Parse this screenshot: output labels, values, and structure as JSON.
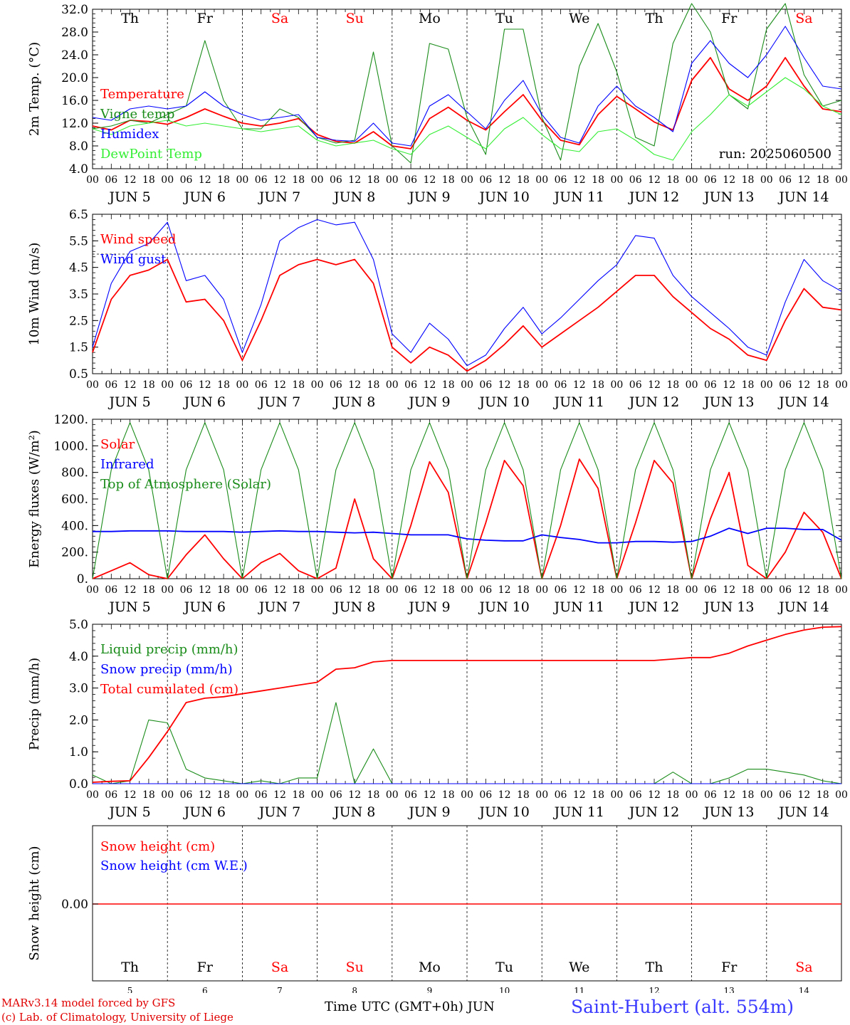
{
  "meta": {
    "credit_line1": "MARv3.14 model forced by GFS",
    "credit_line2": "(c) Lab. of Climatology, University of Liege",
    "x_title": "Time UTC (GMT+0h) JUN",
    "station": "Saint-Hubert (alt. 554m)"
  },
  "colors": {
    "red": "#ff0000",
    "green": "#1a8c1a",
    "blue": "#0000ff",
    "lightgreen": "#33ee33",
    "black": "#000000"
  },
  "days": {
    "weekday_labels": [
      "Th",
      "Fr",
      "Sa",
      "Su",
      "Mo",
      "Tu",
      "We",
      "Th",
      "Fr",
      "Sa"
    ],
    "weekend_flags": [
      false,
      false,
      true,
      true,
      false,
      false,
      false,
      false,
      false,
      true
    ],
    "date_labels": [
      "JUN  5",
      "JUN  6",
      "JUN  7",
      "JUN  8",
      "JUN  9",
      "JUN 10",
      "JUN 11",
      "JUN 12",
      "JUN 13",
      "JUN 14"
    ],
    "day_numbers": [
      "5",
      "6",
      "7",
      "8",
      "9",
      "10",
      "11",
      "12",
      "13",
      "14"
    ],
    "hour_ticks": [
      "00",
      "06",
      "12",
      "18"
    ],
    "last_tick": "00"
  },
  "chart_data": [
    {
      "type": "line",
      "panel": "temperature",
      "ylabel": "2m Temp. (°C)",
      "ylim": [
        4.0,
        32.0
      ],
      "yticks": [
        "4.0",
        "8.0",
        "12.0",
        "16.0",
        "20.0",
        "24.0",
        "28.0",
        "32.0"
      ],
      "annotation": "run: 2025060500",
      "x_hours": [
        0,
        6,
        12,
        18,
        24,
        30,
        36,
        42,
        48,
        54,
        60,
        66,
        72,
        78,
        84,
        90,
        96,
        102,
        108,
        114,
        120,
        126,
        132,
        138,
        144,
        150,
        156,
        162,
        168,
        174,
        180,
        186,
        192,
        198,
        204,
        210,
        216,
        222,
        228,
        234,
        240
      ],
      "series": [
        {
          "name": "Temperature",
          "color": "red",
          "values": [
            11.5,
            10.8,
            12.5,
            12.3,
            11.8,
            13.0,
            14.5,
            13.2,
            12.0,
            11.5,
            12.0,
            12.8,
            10.0,
            8.8,
            8.5,
            10.5,
            8.0,
            7.5,
            12.8,
            14.8,
            12.5,
            10.8,
            14.0,
            17.0,
            12.5,
            9.0,
            8.2,
            13.5,
            16.7,
            14.5,
            12.2,
            10.8,
            19.5,
            23.5,
            18.0,
            16.0,
            18.5,
            23.5,
            18.5,
            14.5,
            14.0
          ]
        },
        {
          "name": "Vigne temp",
          "color": "green",
          "values": [
            11.0,
            11.5,
            12.5,
            12.0,
            13.5,
            15.0,
            26.5,
            16.0,
            11.0,
            11.0,
            14.5,
            13.0,
            9.5,
            8.5,
            9.0,
            24.5,
            8.0,
            5.0,
            26.0,
            25.0,
            13.0,
            6.5,
            28.5,
            28.5,
            13.0,
            5.5,
            22.0,
            29.5,
            21.0,
            9.5,
            8.0,
            26.0,
            33.0,
            28.0,
            17.0,
            14.5,
            28.5,
            33.0,
            20.5,
            15.0,
            16.0
          ]
        },
        {
          "name": "Humidex",
          "color": "blue",
          "values": [
            13.0,
            12.5,
            14.5,
            15.0,
            14.5,
            15.0,
            17.5,
            15.0,
            13.5,
            12.5,
            13.0,
            13.5,
            9.5,
            9.0,
            8.8,
            12.0,
            8.5,
            8.0,
            15.0,
            17.0,
            14.0,
            11.0,
            16.0,
            19.5,
            13.5,
            9.5,
            8.5,
            15.0,
            18.5,
            15.0,
            13.0,
            10.5,
            22.5,
            26.5,
            22.5,
            20.0,
            24.0,
            29.0,
            23.5,
            18.5,
            18.0
          ]
        },
        {
          "name": "DewPoint Temp",
          "color": "lightgreen",
          "values": [
            11.0,
            10.0,
            11.5,
            12.0,
            12.5,
            11.5,
            12.0,
            11.5,
            11.0,
            10.5,
            11.0,
            11.5,
            9.0,
            8.0,
            8.5,
            9.0,
            7.5,
            6.5,
            10.0,
            11.5,
            9.5,
            7.5,
            11.0,
            13.0,
            10.0,
            7.5,
            7.0,
            10.5,
            11.0,
            9.0,
            6.5,
            5.5,
            10.5,
            13.5,
            17.0,
            15.0,
            17.5,
            20.0,
            18.0,
            15.0,
            13.5
          ]
        }
      ]
    },
    {
      "type": "line",
      "panel": "wind",
      "ylabel": "10m Wind (m/s)",
      "ylim": [
        0.5,
        6.5
      ],
      "yticks": [
        "0.5",
        "1.5",
        "2.5",
        "3.5",
        "4.5",
        "5.5",
        "6.5"
      ],
      "reference_line": 5.0,
      "x_hours": [
        0,
        6,
        12,
        18,
        24,
        30,
        36,
        42,
        48,
        54,
        60,
        66,
        72,
        78,
        84,
        90,
        96,
        102,
        108,
        114,
        120,
        126,
        132,
        138,
        144,
        150,
        156,
        162,
        168,
        174,
        180,
        186,
        192,
        198,
        204,
        210,
        216,
        222,
        228,
        234,
        240
      ],
      "series": [
        {
          "name": "Wind speed",
          "color": "red",
          "values": [
            1.3,
            3.3,
            4.2,
            4.4,
            4.8,
            3.2,
            3.3,
            2.5,
            1.0,
            2.5,
            4.2,
            4.6,
            4.8,
            4.6,
            4.8,
            3.9,
            1.5,
            0.9,
            1.5,
            1.2,
            0.6,
            1.0,
            1.6,
            2.3,
            1.5,
            2.0,
            2.5,
            3.0,
            3.6,
            4.2,
            4.2,
            3.4,
            2.8,
            2.2,
            1.8,
            1.2,
            1.0,
            2.5,
            3.7,
            3.0,
            2.9
          ]
        },
        {
          "name": "Wind gust",
          "color": "blue",
          "values": [
            1.5,
            3.9,
            5.1,
            5.4,
            6.2,
            4.0,
            4.2,
            3.3,
            1.3,
            3.1,
            5.5,
            6.0,
            6.3,
            6.1,
            6.2,
            4.8,
            2.0,
            1.3,
            2.4,
            1.8,
            0.8,
            1.2,
            2.2,
            3.0,
            2.0,
            2.6,
            3.3,
            4.0,
            4.6,
            5.7,
            5.6,
            4.2,
            3.4,
            2.8,
            2.2,
            1.5,
            1.2,
            3.2,
            4.8,
            4.0,
            3.6
          ]
        }
      ]
    },
    {
      "type": "line",
      "panel": "energy",
      "ylabel": "Energy fluxes (W/m²)",
      "ylim": [
        0,
        1200
      ],
      "yticks": [
        "0.",
        "200.",
        "400.",
        "600.",
        "800.",
        "1000.",
        "1200."
      ],
      "x_hours": [
        0,
        6,
        12,
        18,
        24,
        30,
        36,
        42,
        48,
        54,
        60,
        66,
        72,
        78,
        84,
        90,
        96,
        102,
        108,
        114,
        120,
        126,
        132,
        138,
        144,
        150,
        156,
        162,
        168,
        174,
        180,
        186,
        192,
        198,
        204,
        210,
        216,
        222,
        228,
        234,
        240
      ],
      "series": [
        {
          "name": "Solar",
          "color": "red",
          "values": [
            0,
            60,
            120,
            30,
            0,
            180,
            330,
            150,
            0,
            120,
            190,
            60,
            0,
            80,
            600,
            150,
            0,
            400,
            880,
            650,
            0,
            420,
            890,
            700,
            0,
            400,
            900,
            680,
            0,
            420,
            890,
            720,
            0,
            450,
            800,
            100,
            0,
            200,
            500,
            350,
            0
          ]
        },
        {
          "name": "Infrared",
          "color": "blue",
          "values": [
            355,
            355,
            360,
            360,
            360,
            355,
            355,
            355,
            350,
            355,
            360,
            355,
            355,
            350,
            345,
            350,
            340,
            330,
            330,
            330,
            300,
            290,
            285,
            285,
            330,
            310,
            295,
            270,
            270,
            280,
            280,
            275,
            280,
            320,
            380,
            340,
            380,
            380,
            370,
            370,
            290
          ]
        },
        {
          "name": "Top of Atmosphere (Solar)",
          "color": "green",
          "values": [
            0,
            820,
            1175,
            820,
            0,
            820,
            1175,
            820,
            0,
            820,
            1175,
            820,
            0,
            820,
            1175,
            820,
            0,
            820,
            1175,
            820,
            0,
            820,
            1175,
            820,
            0,
            820,
            1175,
            820,
            0,
            820,
            1175,
            820,
            0,
            820,
            1175,
            820,
            0,
            820,
            1175,
            820,
            0
          ]
        }
      ]
    },
    {
      "type": "line",
      "panel": "precip",
      "ylabel": "Precip (mm/h)",
      "ylim": [
        0.0,
        5.5
      ],
      "yticks": [
        "0.0",
        "1.0",
        "2.0",
        "3.0",
        "4.0",
        "5.0"
      ],
      "x_hours": [
        0,
        6,
        12,
        18,
        24,
        30,
        36,
        42,
        48,
        54,
        60,
        66,
        72,
        78,
        84,
        90,
        96,
        102,
        108,
        114,
        120,
        126,
        132,
        138,
        144,
        150,
        156,
        162,
        168,
        174,
        180,
        186,
        192,
        198,
        204,
        210,
        216,
        222,
        228,
        234,
        240
      ],
      "series": [
        {
          "name": "Liquid precip (mm/h)",
          "color": "green",
          "values": [
            0.3,
            0.0,
            0.1,
            2.2,
            2.1,
            0.5,
            0.2,
            0.1,
            0.0,
            0.1,
            0.0,
            0.2,
            0.2,
            2.8,
            0.0,
            1.2,
            0.0,
            0.0,
            0.0,
            0.0,
            0.0,
            0.0,
            0.0,
            0.0,
            0.0,
            0.0,
            0.0,
            0.0,
            0.0,
            0.0,
            0.0,
            0.4,
            0.0,
            0.0,
            0.2,
            0.5,
            0.5,
            0.4,
            0.3,
            0.1,
            0.0
          ]
        },
        {
          "name": "Snow precip (mm/h)",
          "color": "blue",
          "values": [
            0,
            0,
            0,
            0,
            0,
            0,
            0,
            0,
            0,
            0,
            0,
            0,
            0,
            0,
            0,
            0,
            0,
            0,
            0,
            0,
            0,
            0,
            0,
            0,
            0,
            0,
            0,
            0,
            0,
            0,
            0,
            0,
            0,
            0,
            0,
            0,
            0,
            0,
            0,
            0,
            0
          ]
        },
        {
          "name": "Total cumulated (cm)",
          "color": "red",
          "values": [
            0.05,
            0.08,
            0.1,
            0.9,
            1.8,
            2.8,
            2.95,
            3.0,
            3.1,
            3.2,
            3.3,
            3.4,
            3.5,
            3.95,
            4.0,
            4.2,
            4.25,
            4.25,
            4.25,
            4.25,
            4.25,
            4.25,
            4.25,
            4.25,
            4.25,
            4.25,
            4.25,
            4.25,
            4.25,
            4.25,
            4.25,
            4.3,
            4.35,
            4.35,
            4.5,
            4.75,
            4.95,
            5.15,
            5.3,
            5.4,
            5.42
          ]
        }
      ]
    },
    {
      "type": "line",
      "panel": "snow",
      "ylabel": "Snow height (cm)",
      "ytick": "0.00",
      "series": [
        {
          "name": "Snow height (cm)",
          "color": "red",
          "values": [
            0,
            0
          ]
        },
        {
          "name": "Snow height (cm W.E.)",
          "color": "blue",
          "values": [
            0,
            0
          ]
        }
      ]
    }
  ]
}
